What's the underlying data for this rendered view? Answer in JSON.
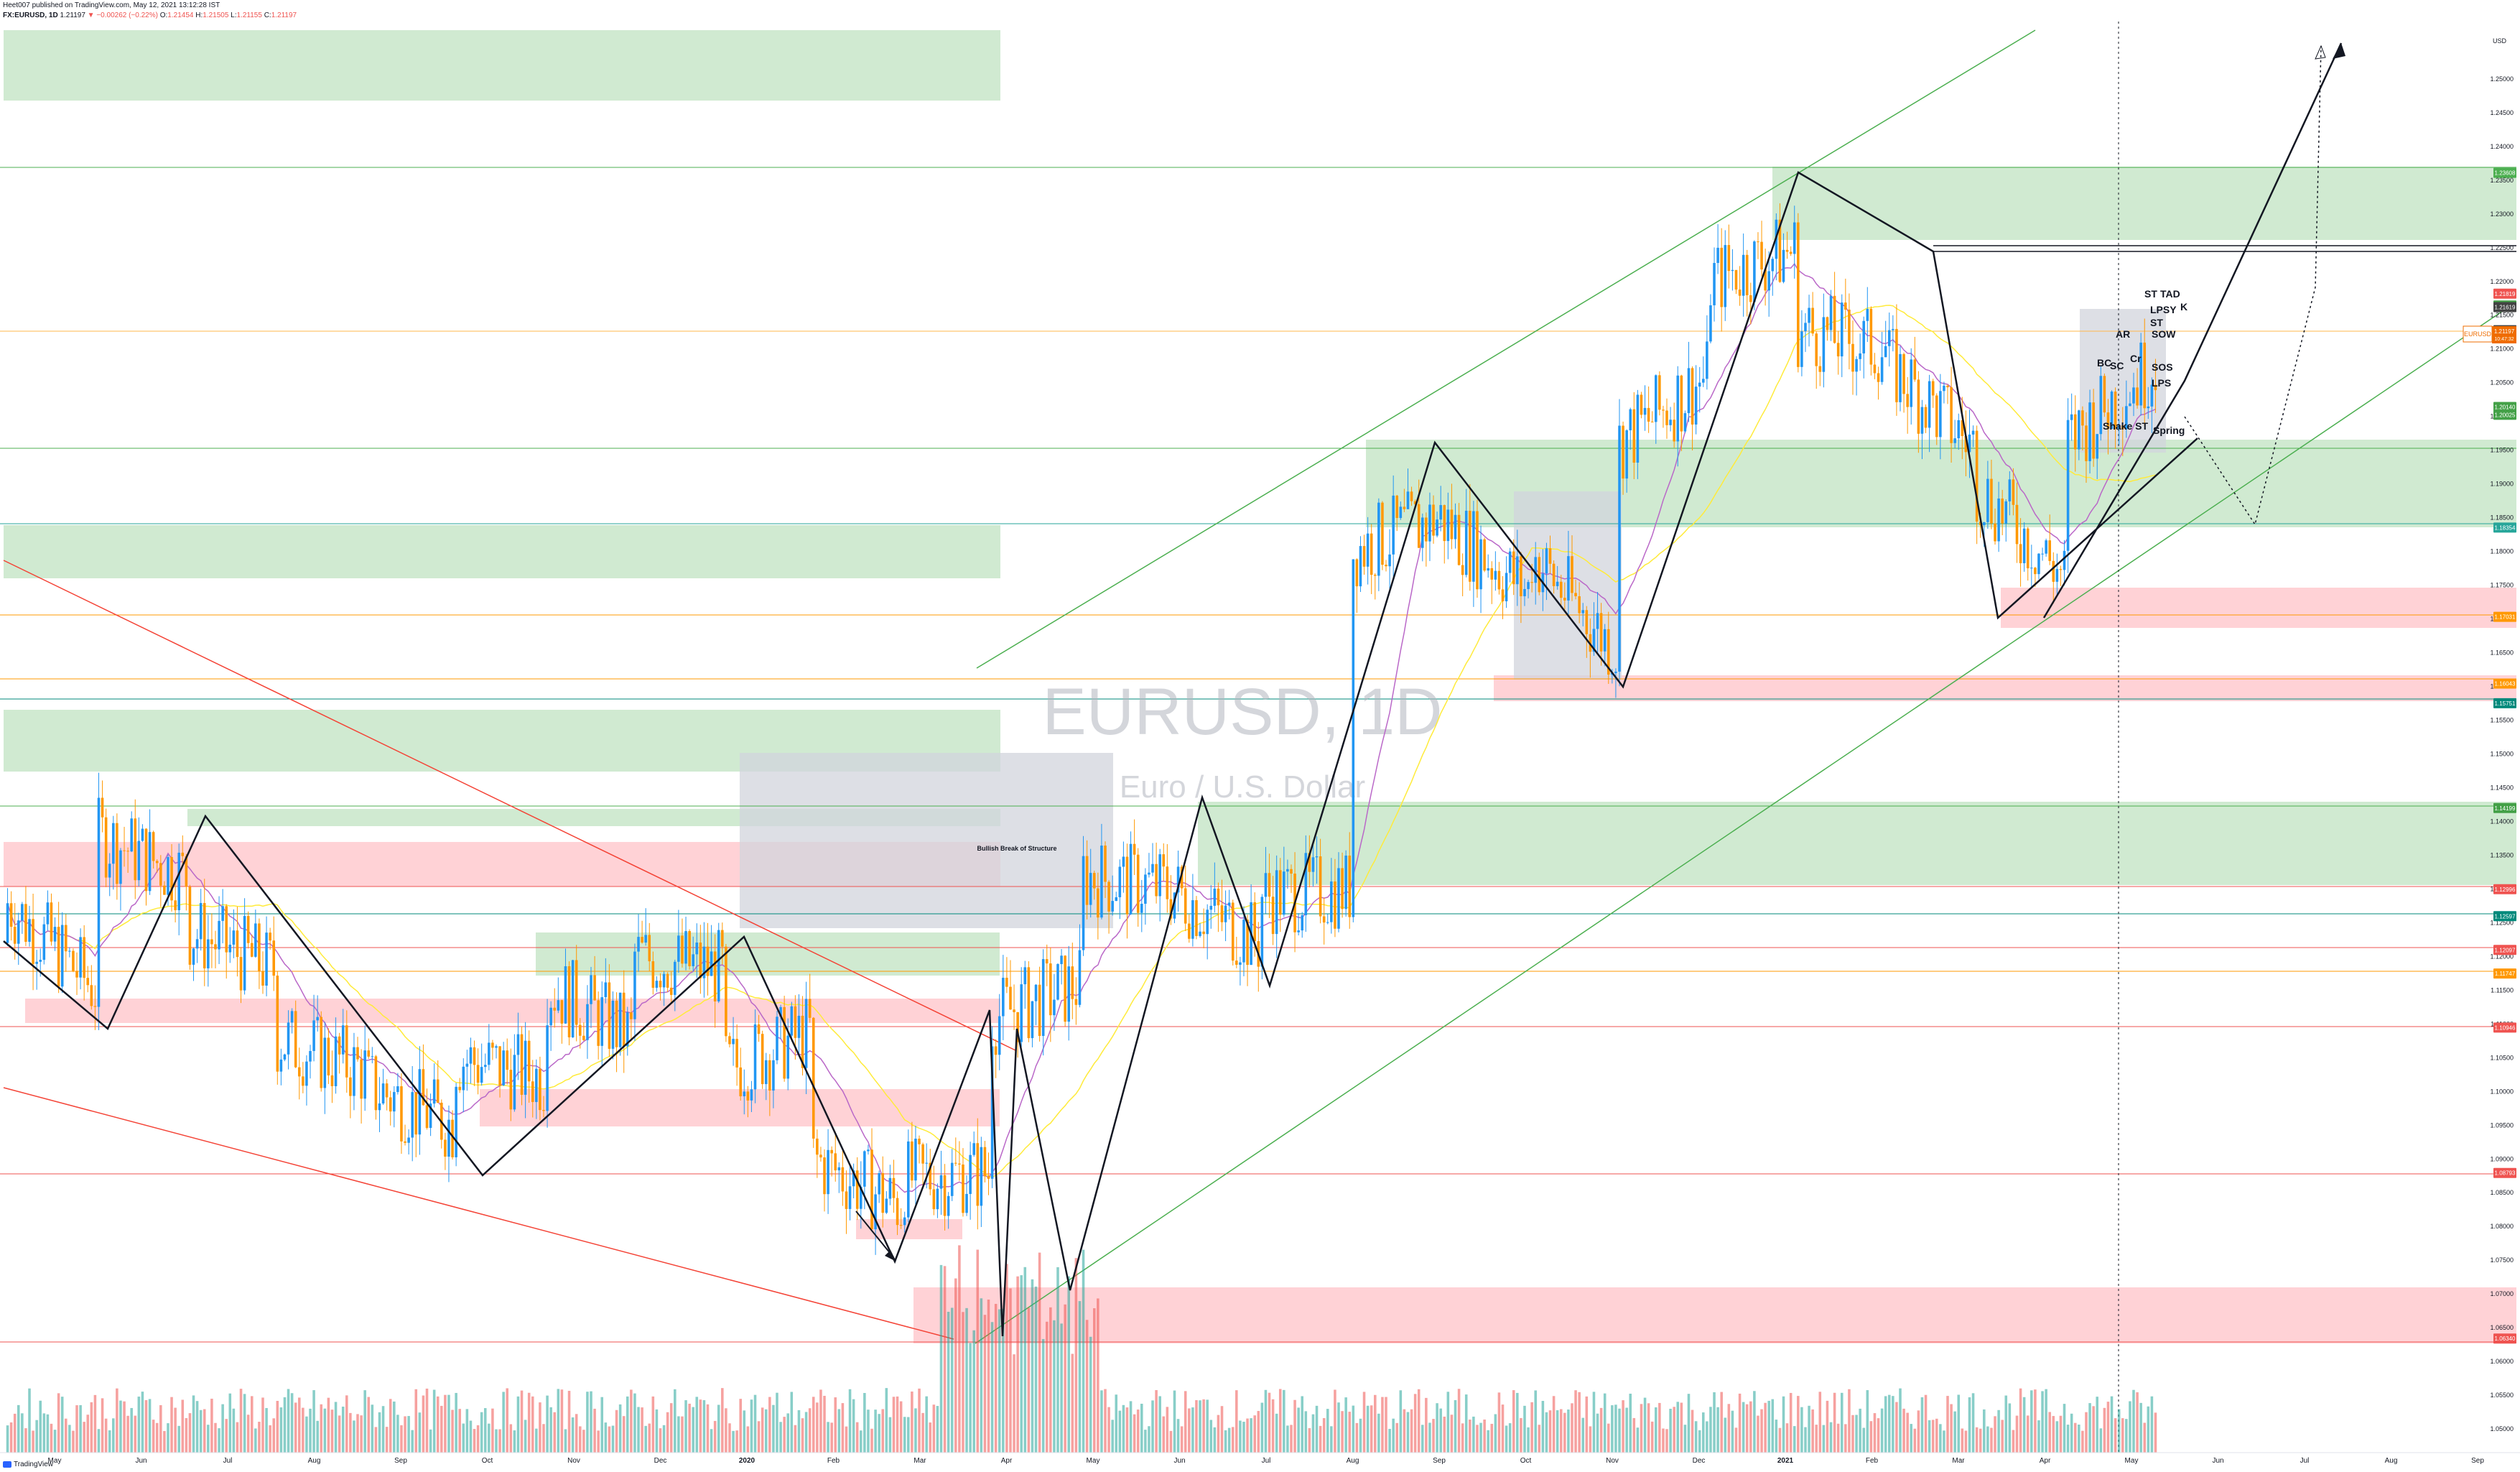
{
  "header": {
    "published": "Heet007 published on TradingView.com, May 12, 2021 13:12:28 IST",
    "symbol": "FX:EURUSD, 1D",
    "last": "1.21197",
    "change": "▼ −0.00262 (−0.22%)",
    "open_label": "O:",
    "open": "1.21454",
    "high_label": "H:",
    "high": "1.21505",
    "low_label": "L:",
    "low": "1.21155",
    "close_label": "C:",
    "close": "1.21197"
  },
  "watermark": {
    "title": "EURUSD, 1D",
    "subtitle": "Euro / U.S. Dollar"
  },
  "footer": {
    "brand": "TradingView"
  },
  "colors": {
    "up": "#26a69a",
    "down": "#ef5350",
    "bull_candle": "#2196f3",
    "bear_candle": "#ff9800",
    "green_zone": "#c8e6c9",
    "red_zone": "#ffcdd2",
    "gray_zone": "#d1d4dc",
    "ma_yellow": "#ffeb3b",
    "ma_purple": "#ba68c8",
    "channel": "#4caf50",
    "trend_red": "#f44336"
  },
  "chart_data": {
    "type": "candlestick",
    "y_axis": {
      "currency": "USD",
      "ticks": [
        "1.25000",
        "1.24500",
        "1.24000",
        "1.23500",
        "1.23000",
        "1.22500",
        "1.22000",
        "1.21500",
        "1.21000",
        "1.20500",
        "1.20000",
        "1.19500",
        "1.19000",
        "1.18500",
        "1.18000",
        "1.17500",
        "1.17000",
        "1.16500",
        "1.16000",
        "1.15500",
        "1.15000",
        "1.14500",
        "1.14000",
        "1.13500",
        "1.13000",
        "1.12500",
        "1.12000",
        "1.11500",
        "1.11000",
        "1.10500",
        "1.10000",
        "1.09500",
        "1.09000",
        "1.08500",
        "1.08000",
        "1.07500",
        "1.07000",
        "1.06500",
        "1.06000",
        "1.05500",
        "1.05000"
      ],
      "range": [
        1.0465,
        1.2585
      ]
    },
    "x_axis": {
      "ticks": [
        "May",
        "Jun",
        "Jul",
        "Aug",
        "Sep",
        "Oct",
        "Nov",
        "Dec",
        "2020",
        "Feb",
        "Mar",
        "Apr",
        "May",
        "Jun",
        "Jul",
        "Aug",
        "Sep",
        "Oct",
        "Nov",
        "Dec",
        "2021",
        "Feb",
        "Mar",
        "Apr",
        "May",
        "Jun",
        "Jul",
        "Aug",
        "Sep"
      ]
    },
    "price_badges": [
      {
        "value": "1.23608",
        "color": "#4caf50"
      },
      {
        "value": "1.21819",
        "color": "#ef5350"
      },
      {
        "value": "1.21643",
        "color": "#43a047"
      },
      {
        "value": "1.21619",
        "color": "#424242"
      },
      {
        "value": "1.21278",
        "color": "#424242"
      },
      {
        "value": "1.21219",
        "color": "#ef5350"
      },
      {
        "value": "1.21197",
        "color": "#ef6c00"
      },
      {
        "value": "1.20140",
        "color": "#43a047"
      },
      {
        "value": "1.20025",
        "color": "#43a047"
      },
      {
        "value": "1.18354",
        "color": "#26a69a"
      },
      {
        "value": "1.17031",
        "color": "#ff9800"
      },
      {
        "value": "1.16043",
        "color": "#ff9800"
      },
      {
        "value": "1.15751",
        "color": "#00897b"
      },
      {
        "value": "1.14199",
        "color": "#43a047"
      },
      {
        "value": "1.12996",
        "color": "#ef5350"
      },
      {
        "value": "1.12597",
        "color": "#00897b"
      },
      {
        "value": "1.12097",
        "color": "#ef5350"
      },
      {
        "value": "1.11747",
        "color": "#ff9800"
      },
      {
        "value": "1.10946",
        "color": "#ef5350"
      },
      {
        "value": "1.08793",
        "color": "#ef5350"
      },
      {
        "value": "1.06340",
        "color": "#ef5350"
      }
    ],
    "symbol_badge": {
      "label": "EURUSD",
      "value": "1.21197",
      "countdown": "10:47:32"
    },
    "annotations": {
      "bos": "Bullish Break of Structure",
      "wyckoff": [
        "ST",
        "TAD",
        "LPSY",
        "K",
        "SOW",
        "LPS",
        "Shake ST",
        "Spring",
        "AR",
        "SC",
        "BC",
        "Cr",
        "ST",
        "SOS"
      ]
    },
    "candles_monthly_path": [
      [
        1.122,
        1.128
      ],
      [
        1.115,
        1.138
      ],
      [
        1.132,
        1.124
      ],
      [
        1.118,
        1.108
      ],
      [
        1.103,
        1.101
      ],
      [
        1.095,
        1.105
      ],
      [
        1.102,
        1.116
      ],
      [
        1.108,
        1.12
      ],
      [
        1.118,
        1.103
      ],
      [
        1.109,
        1.09
      ],
      [
        1.083,
        1.087
      ],
      [
        1.088,
        1.111
      ],
      [
        1.116,
        1.132
      ],
      [
        1.13,
        1.13
      ],
      [
        1.122,
        1.129
      ],
      [
        1.13,
        1.18
      ],
      [
        1.185,
        1.185
      ],
      [
        1.174,
        1.18
      ],
      [
        1.165,
        1.196
      ],
      [
        1.206,
        1.22
      ],
      [
        1.225,
        1.213
      ],
      [
        1.21,
        1.208
      ],
      [
        1.195,
        1.19
      ],
      [
        1.176,
        1.196
      ],
      [
        1.208,
        1.212
      ]
    ]
  }
}
